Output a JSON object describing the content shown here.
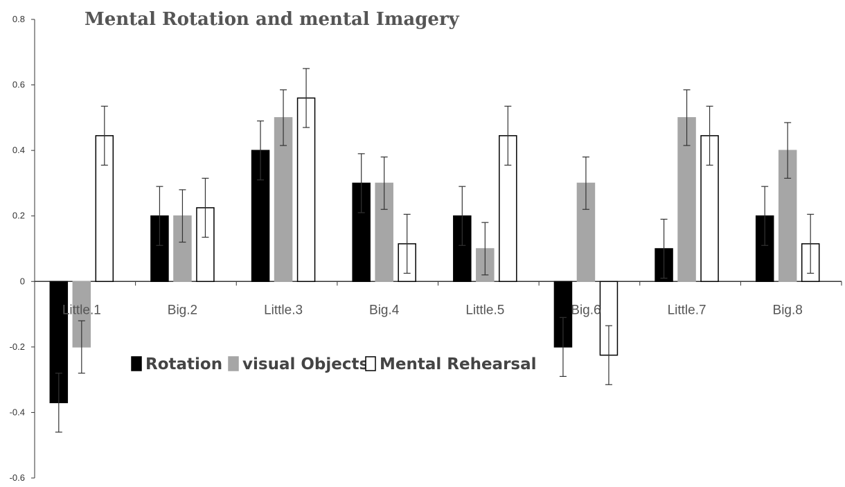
{
  "chart_data": {
    "type": "bar",
    "title": "Mental Rotation and mental Imagery",
    "xlabel": "",
    "ylabel": "",
    "ylim": [
      -0.6,
      0.8
    ],
    "y_ticks": [
      "-0.6",
      "-0.4",
      "-0.2",
      "0",
      "0.2",
      "0.4",
      "0.6",
      "0.8"
    ],
    "categories": [
      "Little.1",
      "Big.2",
      "Little.3",
      "Big.4",
      "Little.5",
      "Big.6",
      "Little.7",
      "Big.8"
    ],
    "series": [
      {
        "name": "Rotation",
        "color": "#000000",
        "stroke": "#000000",
        "values": [
          -0.37,
          0.2,
          0.4,
          0.3,
          0.2,
          -0.2,
          0.1,
          0.2
        ],
        "errors": [
          0.09,
          0.09,
          0.09,
          0.09,
          0.09,
          0.09,
          0.09,
          0.09
        ]
      },
      {
        "name": "visual Objects",
        "color": "#a6a6a6",
        "stroke": "#a6a6a6",
        "values": [
          -0.2,
          0.2,
          0.5,
          0.3,
          0.1,
          0.3,
          0.5,
          0.4
        ],
        "errors": [
          0.08,
          0.08,
          0.085,
          0.08,
          0.08,
          0.08,
          0.085,
          0.085
        ]
      },
      {
        "name": "Mental Rehearsal",
        "color": "#ffffff",
        "stroke": "#000000",
        "values": [
          0.445,
          0.225,
          0.56,
          0.115,
          0.445,
          -0.225,
          0.445,
          0.115
        ],
        "errors": [
          0.09,
          0.09,
          0.09,
          0.09,
          0.09,
          0.09,
          0.09,
          0.09
        ]
      }
    ],
    "grid": false,
    "legend_position": "inside, center-left below zero line"
  }
}
